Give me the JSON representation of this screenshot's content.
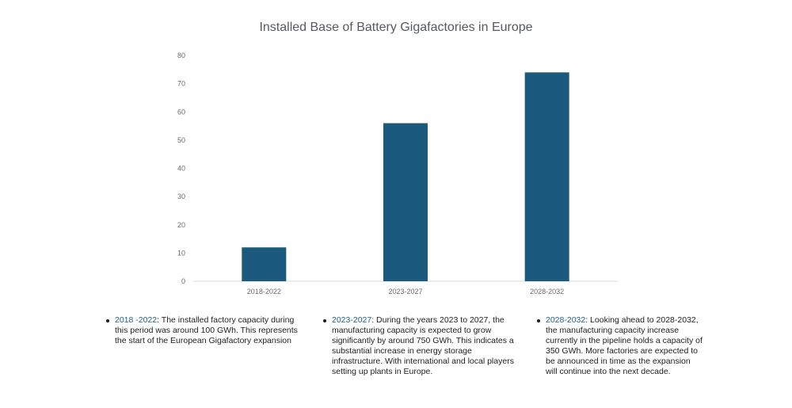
{
  "chart_data": {
    "type": "bar",
    "title": "Installed Base of Battery Gigafactories in Europe",
    "categories": [
      "2018-2022",
      "2023-2027",
      "2028-2032"
    ],
    "values": [
      12,
      56,
      74
    ],
    "ylim": [
      0,
      80
    ],
    "yticks": [
      0,
      10,
      20,
      30,
      40,
      50,
      60,
      70,
      80
    ],
    "xlabel": "",
    "ylabel": "",
    "grid": false,
    "bar_color": "#1b5a7c"
  },
  "notes": [
    {
      "period": "2018 -2022",
      "text": ": The installed factory capacity during this period was around 100 GWh. This represents the start of the European Gigafactory expansion"
    },
    {
      "period": "2023-2027",
      "text": ": During the years 2023 to 2027, the manufacturing capacity is expected to grow significantly by around 750 GWh. This indicates a substantial increase in energy storage infrastructure. With international and local players setting up plants in Europe."
    },
    {
      "period": "2028-2032",
      "text": ": Looking ahead to 2028-2032, the manufacturing capacity increase currently in the pipeline holds a capacity of 350 GWh. More factories are expected to be announced in time as the expansion will continue into the next decade."
    }
  ]
}
